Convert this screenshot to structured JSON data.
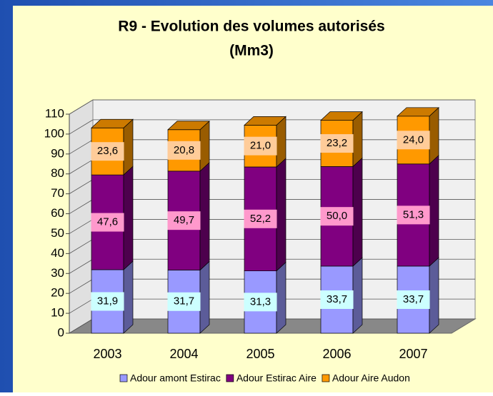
{
  "chart_data": {
    "type": "bar3d_stacked",
    "title": [
      "R9 - Evolution des volumes autorisés",
      "(Mm3)"
    ],
    "categories": [
      "2003",
      "2004",
      "2005",
      "2006",
      "2007"
    ],
    "series": [
      {
        "name": "Adour amont Estirac",
        "color": "#9999ff",
        "label_color": "#ccffff",
        "values": [
          31.9,
          31.7,
          31.3,
          33.7,
          33.7
        ],
        "value_labels": [
          "31,9",
          "31,7",
          "31,3",
          "33,7",
          "33,7"
        ]
      },
      {
        "name": "Adour Estirac Aire",
        "color": "#800080",
        "label_color": "#ff99cc",
        "values": [
          47.6,
          49.7,
          52.2,
          50.0,
          51.3
        ],
        "value_labels": [
          "47,6",
          "49,7",
          "52,2",
          "50,0",
          "51,3"
        ]
      },
      {
        "name": "Adour Aire Audon",
        "color": "#ff9900",
        "label_color": "#ffcc99",
        "values": [
          23.6,
          20.8,
          21.0,
          23.2,
          24.0
        ],
        "value_labels": [
          "23,6",
          "20,8",
          "21,0",
          "23,2",
          "24,0"
        ]
      }
    ],
    "ylim": [
      0,
      110
    ],
    "yticks": [
      0,
      10,
      20,
      30,
      40,
      50,
      60,
      70,
      80,
      90,
      100,
      110
    ],
    "grid": true,
    "legend": "bottom"
  }
}
